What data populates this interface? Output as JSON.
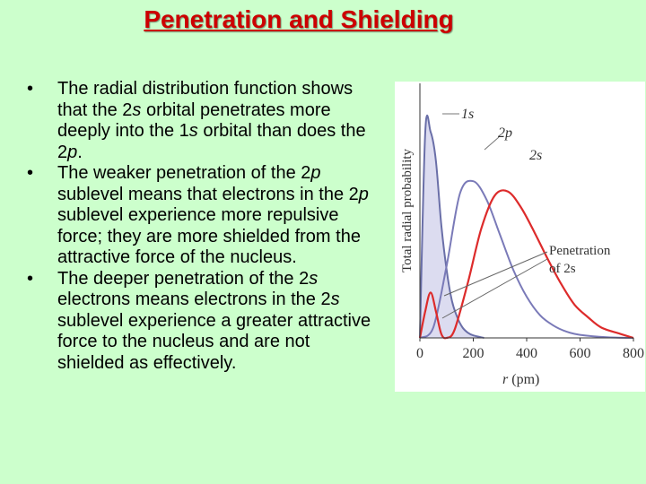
{
  "slide": {
    "title": "Penetration and Shielding",
    "bullets": [
      [
        {
          "t": "The radial distribution function shows that the 2"
        },
        {
          "t": "s",
          "i": true
        },
        {
          "t": " orbital penetrates more deeply into the 1"
        },
        {
          "t": "s",
          "i": true
        },
        {
          "t": " orbital than does the 2"
        },
        {
          "t": "p",
          "i": true
        },
        {
          "t": "."
        }
      ],
      [
        {
          "t": "The weaker penetration of the 2"
        },
        {
          "t": "p",
          "i": true
        },
        {
          "t": " sublevel means that electrons in the 2"
        },
        {
          "t": "p",
          "i": true
        },
        {
          "t": " sublevel experience more repulsive force; they are more shielded from the attractive force of the nucleus."
        }
      ],
      [
        {
          "t": "The deeper penetration of the 2"
        },
        {
          "t": "s",
          "i": true
        },
        {
          "t": " electrons means electrons in the 2"
        },
        {
          "t": "s",
          "i": true
        },
        {
          "t": " sublevel experience a greater attractive force to the nucleus and are not shielded as effectively."
        }
      ]
    ]
  },
  "figure": {
    "ylabel": "Total radial probability",
    "xlabel_var": "r",
    "xlabel_unit": " (pm)",
    "label_1s": "1s",
    "label_2p": "2p",
    "label_2s": "2s",
    "annotation_line1": "Penetration",
    "annotation_line2": "of 2s",
    "colors": {
      "orbital_1s": "#6a6fa8",
      "orbital_1s_fill": "#dcdcf0",
      "orbital_2p": "#7a7ab8",
      "orbital_2s": "#dd2b2b",
      "axis": "#333333"
    }
  },
  "chart_data": {
    "type": "line",
    "xlabel": "r (pm)",
    "ylabel": "Total radial probability",
    "xlim": [
      0,
      800
    ],
    "x_ticks": [
      0,
      200,
      400,
      600,
      800
    ],
    "series": [
      {
        "name": "1s",
        "x": [
          0,
          20,
          40,
          60,
          80,
          100,
          120,
          140,
          160,
          180,
          200,
          240
        ],
        "y": [
          0.0,
          1.0,
          1.0,
          0.86,
          0.55,
          0.33,
          0.18,
          0.1,
          0.05,
          0.025,
          0.012,
          0.0
        ]
      },
      {
        "name": "2p",
        "x": [
          0,
          50,
          100,
          150,
          200,
          250,
          300,
          350,
          400,
          450,
          500,
          550,
          600,
          700,
          800
        ],
        "y": [
          0.0,
          0.05,
          0.35,
          0.7,
          0.76,
          0.67,
          0.5,
          0.33,
          0.2,
          0.11,
          0.06,
          0.03,
          0.015,
          0.003,
          0.0
        ]
      },
      {
        "name": "2s",
        "x": [
          0,
          20,
          40,
          60,
          80,
          100,
          130,
          180,
          230,
          280,
          330,
          380,
          430,
          480,
          530,
          580,
          630,
          680,
          750,
          800
        ],
        "y": [
          0.0,
          0.13,
          0.22,
          0.13,
          0.02,
          0.0,
          0.04,
          0.27,
          0.53,
          0.69,
          0.71,
          0.63,
          0.51,
          0.38,
          0.26,
          0.16,
          0.1,
          0.05,
          0.02,
          0.0
        ]
      }
    ],
    "annotations": [
      "Penetration of 2s"
    ],
    "grid": false
  }
}
